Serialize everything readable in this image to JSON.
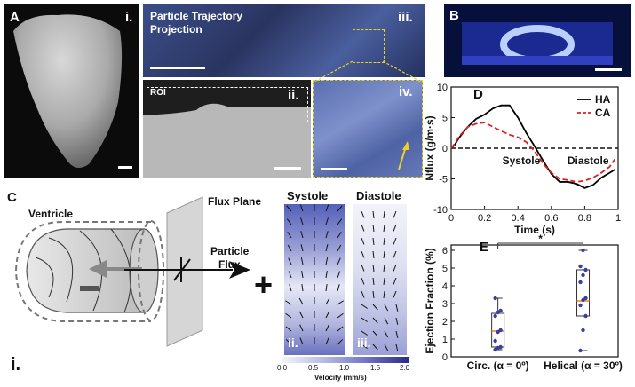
{
  "panels": {
    "A": {
      "label": "A",
      "sub": "i."
    },
    "A_iii": {
      "sub": "iii.",
      "title_line1": "Particle Trajectory",
      "title_line2": "Projection"
    },
    "A_ii": {
      "sub": "ii.",
      "roi": "ROI"
    },
    "A_iv": {
      "sub": "iv."
    },
    "B": {
      "label": "B"
    },
    "C": {
      "label": "C",
      "sub": "i.",
      "ventricle": "Ventricle",
      "flux_plane": "Flux Plane",
      "particle_line1": "Particle",
      "particle_line2": "Flux",
      "plus": "+"
    },
    "C_fields": {
      "systole": "Systole",
      "diastole": "Diastole",
      "sub_ii": "ii.",
      "sub_iii": "iii.",
      "cbar_label": "Velocity (mm/s)",
      "cbar_ticks": [
        "0.0",
        "0.5",
        "1.0",
        "1.5",
        "2.0"
      ]
    },
    "D": {
      "label": "D",
      "systole": "Systole",
      "diastole": "Diastole"
    },
    "E": {
      "label": "E",
      "star": "*"
    }
  },
  "chart_data": [
    {
      "type": "line",
      "panel": "D",
      "xlabel": "Time (s)",
      "ylabel": "Nflux (g/m·s)",
      "xlim": [
        0,
        1
      ],
      "ylim": [
        -10,
        10
      ],
      "xticks": [
        "0",
        "0.2",
        "0.4",
        "0.6",
        "0.8",
        "1"
      ],
      "yticks": [
        "10",
        "5",
        "0",
        "-5",
        "-10"
      ],
      "legend_position": "top-right",
      "series": [
        {
          "name": "HA",
          "color": "#000000",
          "dash": "solid",
          "x": [
            0,
            0.02,
            0.05,
            0.1,
            0.15,
            0.2,
            0.25,
            0.3,
            0.35,
            0.4,
            0.45,
            0.5,
            0.55,
            0.6,
            0.65,
            0.7,
            0.75,
            0.8,
            0.85,
            0.9,
            0.95,
            0.98
          ],
          "y": [
            0,
            0.5,
            1.8,
            3.5,
            4.8,
            5.5,
            6.5,
            7.0,
            7.0,
            5.0,
            2.5,
            0.3,
            -2.0,
            -4.2,
            -5.5,
            -5.5,
            -5.8,
            -6.5,
            -6.0,
            -4.8,
            -4.0,
            -3.5
          ]
        },
        {
          "name": "CA",
          "color": "#dd2222",
          "dash": "dashed",
          "x": [
            0,
            0.02,
            0.05,
            0.1,
            0.15,
            0.2,
            0.25,
            0.3,
            0.35,
            0.4,
            0.45,
            0.5,
            0.55,
            0.6,
            0.65,
            0.7,
            0.75,
            0.8,
            0.85,
            0.9,
            0.95,
            0.98
          ],
          "y": [
            0,
            0.7,
            2.0,
            3.5,
            4.0,
            4.2,
            3.5,
            2.8,
            2.2,
            1.8,
            1.0,
            -0.5,
            -2.5,
            -4.0,
            -5.0,
            -5.2,
            -5.5,
            -5.3,
            -4.8,
            -4.0,
            -3.0,
            -1.8
          ]
        }
      ],
      "zero_line": "dashed"
    },
    {
      "type": "box",
      "panel": "E",
      "ylabel": "Ejection Fraction (%)",
      "ylim": [
        0,
        6.3
      ],
      "yticks": [
        "6",
        "5",
        "4",
        "3",
        "2",
        "1",
        "0"
      ],
      "categories": [
        "Circ. (α = 0º)",
        "Helical (α = 30º)"
      ],
      "boxes": [
        {
          "min": 0.4,
          "q1": 0.55,
          "median": 1.45,
          "q3": 2.45,
          "max": 3.3,
          "points": [
            0.4,
            0.5,
            0.55,
            0.9,
            1.4,
            1.5,
            2.3,
            2.5,
            2.6,
            3.3
          ]
        },
        {
          "min": 0.35,
          "q1": 2.3,
          "median": 3.15,
          "q3": 4.9,
          "max": 6.0,
          "points": [
            0.35,
            1.5,
            2.3,
            2.9,
            3.2,
            3.3,
            4.2,
            4.6,
            4.9,
            5.1,
            6.0
          ]
        }
      ],
      "median_color": "#f08020",
      "point_color": "#3b3f9a",
      "significance": "*"
    }
  ]
}
